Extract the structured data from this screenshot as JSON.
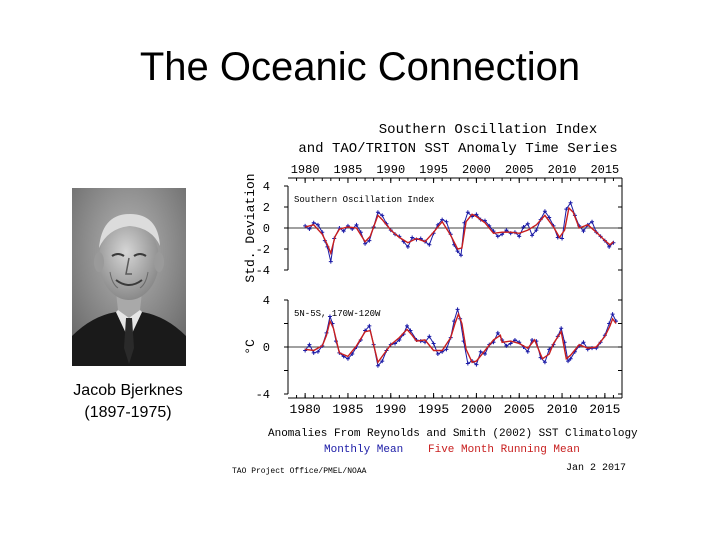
{
  "slide": {
    "title": "The Oceanic Connection"
  },
  "person": {
    "name": "Jacob Bjerknes",
    "years": "(1897-1975)"
  },
  "chart_data": {
    "type": "line",
    "title_line1": "Southern Oscillation Index",
    "title_line2": "and TAO/TRITON SST Anomaly Time Series",
    "x_tick_labels": [
      "1980",
      "1985",
      "1990",
      "1995",
      "2000",
      "2005",
      "2010",
      "2015"
    ],
    "x_ticks": [
      1980,
      1985,
      1990,
      1995,
      2000,
      2005,
      2010,
      2015
    ],
    "xlim": [
      1978,
      2017
    ],
    "panels": [
      {
        "name": "soi",
        "label": "Southern Oscillation Index",
        "ylabel": "Std. Deviation",
        "ylim": [
          -4,
          4
        ],
        "yticks": [
          -4,
          -2,
          0,
          2,
          4
        ],
        "ytick_labels": [
          "-4",
          "-2",
          "0",
          "2",
          "4"
        ],
        "series": [
          {
            "name": "Monthly Mean",
            "x": [
              1980,
              1980.5,
              1981,
              1981.5,
              1982,
              1982.3,
              1982.6,
              1983,
              1983.4,
              1984,
              1984.5,
              1985,
              1985.5,
              1986,
              1986.5,
              1987,
              1987.5,
              1988,
              1988.5,
              1989,
              1989.5,
              1990,
              1990.5,
              1991,
              1991.5,
              1992,
              1992.5,
              1993,
              1993.5,
              1994,
              1994.5,
              1995,
              1995.5,
              1996,
              1996.5,
              1997,
              1997.4,
              1997.8,
              1998.2,
              1998.6,
              1999,
              1999.5,
              2000,
              2000.5,
              2001,
              2001.5,
              2002,
              2002.5,
              2003,
              2003.5,
              2004,
              2004.5,
              2005,
              2005.5,
              2006,
              2006.5,
              2007,
              2007.5,
              2008,
              2008.5,
              2009,
              2009.5,
              2010,
              2010.5,
              2011,
              2011.5,
              2012,
              2012.5,
              2013,
              2013.5,
              2014,
              2014.5,
              2015,
              2015.5,
              2016
            ],
            "values": [
              0.2,
              -0.1,
              0.5,
              0.3,
              -0.4,
              -1.2,
              -1.8,
              -3.2,
              -1.0,
              0.0,
              -0.3,
              0.2,
              -0.1,
              0.3,
              -0.4,
              -1.5,
              -1.2,
              0.1,
              1.5,
              1.2,
              0.4,
              -0.2,
              -0.6,
              -0.8,
              -1.3,
              -1.8,
              -0.9,
              -1.1,
              -1.0,
              -1.3,
              -1.6,
              -0.5,
              0.3,
              0.8,
              0.6,
              -0.6,
              -1.6,
              -2.2,
              -2.6,
              0.5,
              1.5,
              1.1,
              1.3,
              0.8,
              0.7,
              0.2,
              -0.3,
              -0.8,
              -0.6,
              -0.2,
              -0.5,
              -0.4,
              -0.8,
              0.1,
              0.4,
              -0.7,
              -0.2,
              0.8,
              1.6,
              1.0,
              0.2,
              -0.9,
              -1.0,
              1.8,
              2.4,
              1.2,
              0.2,
              -0.3,
              0.3,
              0.6,
              -0.4,
              -0.8,
              -1.2,
              -1.8,
              -1.4
            ]
          },
          {
            "name": "Five Month Running Mean",
            "x": [
              1980,
              1981,
              1982,
              1982.6,
              1983,
              1983.5,
              1984,
              1985,
              1986,
              1987,
              1987.6,
              1988.5,
              1989,
              1990,
              1991,
              1992,
              1993,
              1994,
              1995,
              1996,
              1997,
              1997.8,
              1998.3,
              1998.8,
              1999.5,
              2000,
              2001,
              2002,
              2003,
              2004,
              2005,
              2006,
              2007,
              2008,
              2009,
              2009.7,
              2010.3,
              2010.8,
              2011.3,
              2012,
              2013,
              2014,
              2015,
              2015.6,
              2016
            ],
            "values": [
              0.1,
              0.3,
              -0.6,
              -1.6,
              -2.4,
              -0.8,
              -0.1,
              0.1,
              0.0,
              -1.3,
              -0.8,
              1.2,
              0.8,
              -0.2,
              -0.9,
              -1.4,
              -1.0,
              -1.3,
              -0.4,
              0.6,
              -0.7,
              -2.0,
              -1.9,
              0.6,
              1.3,
              1.1,
              0.5,
              -0.5,
              -0.4,
              -0.4,
              -0.5,
              -0.2,
              0.3,
              1.2,
              0.1,
              -0.9,
              -0.2,
              1.9,
              1.5,
              0.0,
              0.3,
              -0.4,
              -1.2,
              -1.6,
              -1.3
            ]
          }
        ]
      },
      {
        "name": "sst",
        "label": "5N-5S, 170W-120W",
        "ylabel": "°C",
        "ylim": [
          -4,
          4
        ],
        "yticks": [
          -4,
          -2,
          0,
          2,
          4
        ],
        "ytick_labels": [
          "-4",
          "",
          "0",
          "",
          "4"
        ],
        "series": [
          {
            "name": "Monthly Mean",
            "x": [
              1980,
              1980.5,
              1981,
              1981.5,
              1982,
              1982.5,
              1982.9,
              1983.2,
              1983.6,
              1984,
              1984.5,
              1985,
              1985.5,
              1986,
              1986.5,
              1987,
              1987.5,
              1988,
              1988.5,
              1989,
              1989.5,
              1990,
              1990.5,
              1991,
              1991.5,
              1991.9,
              1992.3,
              1993,
              1993.5,
              1994,
              1994.5,
              1995,
              1995.5,
              1996,
              1996.5,
              1997,
              1997.4,
              1997.8,
              1998.1,
              1998.5,
              1999,
              1999.5,
              2000,
              2000.5,
              2001,
              2001.5,
              2002,
              2002.5,
              2003,
              2003.5,
              2004,
              2004.5,
              2005,
              2005.5,
              2006,
              2006.5,
              2007,
              2007.5,
              2008,
              2008.5,
              2009,
              2009.5,
              2009.9,
              2010.3,
              2010.7,
              2011,
              2011.5,
              2012,
              2012.5,
              2013,
              2013.5,
              2014,
              2014.5,
              2015,
              2015.5,
              2015.9,
              2016.3
            ],
            "values": [
              -0.3,
              0.2,
              -0.5,
              -0.4,
              0.1,
              1.2,
              2.6,
              2.0,
              0.5,
              -0.5,
              -0.8,
              -1.0,
              -0.6,
              0.0,
              0.6,
              1.4,
              1.8,
              0.2,
              -1.6,
              -1.2,
              -0.3,
              0.2,
              0.3,
              0.6,
              1.1,
              1.8,
              1.4,
              0.6,
              0.5,
              0.4,
              0.9,
              0.3,
              -0.6,
              -0.4,
              -0.2,
              0.8,
              2.2,
              3.2,
              2.4,
              0.5,
              -1.4,
              -1.2,
              -1.5,
              -0.4,
              -0.6,
              0.2,
              0.4,
              1.2,
              0.6,
              0.1,
              0.3,
              0.6,
              0.4,
              0.0,
              -0.4,
              0.6,
              0.5,
              -0.9,
              -1.3,
              -0.2,
              0.2,
              0.9,
              1.6,
              0.4,
              -1.2,
              -1.0,
              -0.4,
              0.1,
              0.4,
              -0.2,
              -0.1,
              -0.1,
              0.4,
              1.0,
              2.0,
              2.8,
              2.2
            ]
          },
          {
            "name": "Five Month Running Mean",
            "x": [
              1980,
              1981,
              1982,
              1982.5,
              1982.9,
              1983.3,
              1984,
              1985,
              1986,
              1987,
              1987.6,
              1988.5,
              1989,
              1990,
              1991,
              1991.9,
              1992.5,
              1993,
              1994,
              1995,
              1996,
              1997,
              1997.5,
              1997.9,
              1998.3,
              1998.8,
              1999.5,
              2000,
              2001,
              2002,
              2002.8,
              2003,
              2004,
              2005,
              2006,
              2006.8,
              2007.7,
              2008.5,
              2009,
              2009.9,
              2010.5,
              2011,
              2012,
              2013,
              2014,
              2015,
              2015.6,
              2015.9,
              2016.3
            ],
            "values": [
              -0.2,
              -0.3,
              0.1,
              1.0,
              2.2,
              1.6,
              -0.5,
              -0.8,
              0.1,
              1.3,
              1.4,
              -1.3,
              -0.8,
              0.2,
              0.8,
              1.5,
              1.0,
              0.5,
              0.6,
              -0.3,
              -0.3,
              0.8,
              2.0,
              2.8,
              2.0,
              -0.2,
              -1.3,
              -1.2,
              -0.3,
              0.6,
              1.0,
              0.4,
              0.5,
              0.3,
              -0.1,
              0.6,
              -1.0,
              -0.6,
              0.3,
              1.3,
              -1.0,
              -0.7,
              0.2,
              -0.1,
              0.0,
              0.9,
              1.8,
              2.4,
              2.0
            ]
          }
        ]
      }
    ],
    "footer": {
      "anomalies_note": "Anomalies From Reynolds and Smith (2002) SST Climatology",
      "legend_monthly": "Monthly Mean",
      "legend_running": "Five Month Running Mean",
      "credit": "TAO Project Office/PMEL/NOAA",
      "date": "Jan  2 2017"
    },
    "colors": {
      "monthly": "#1a1aa6",
      "running": "#c81e1e",
      "axis": "#000000"
    }
  }
}
